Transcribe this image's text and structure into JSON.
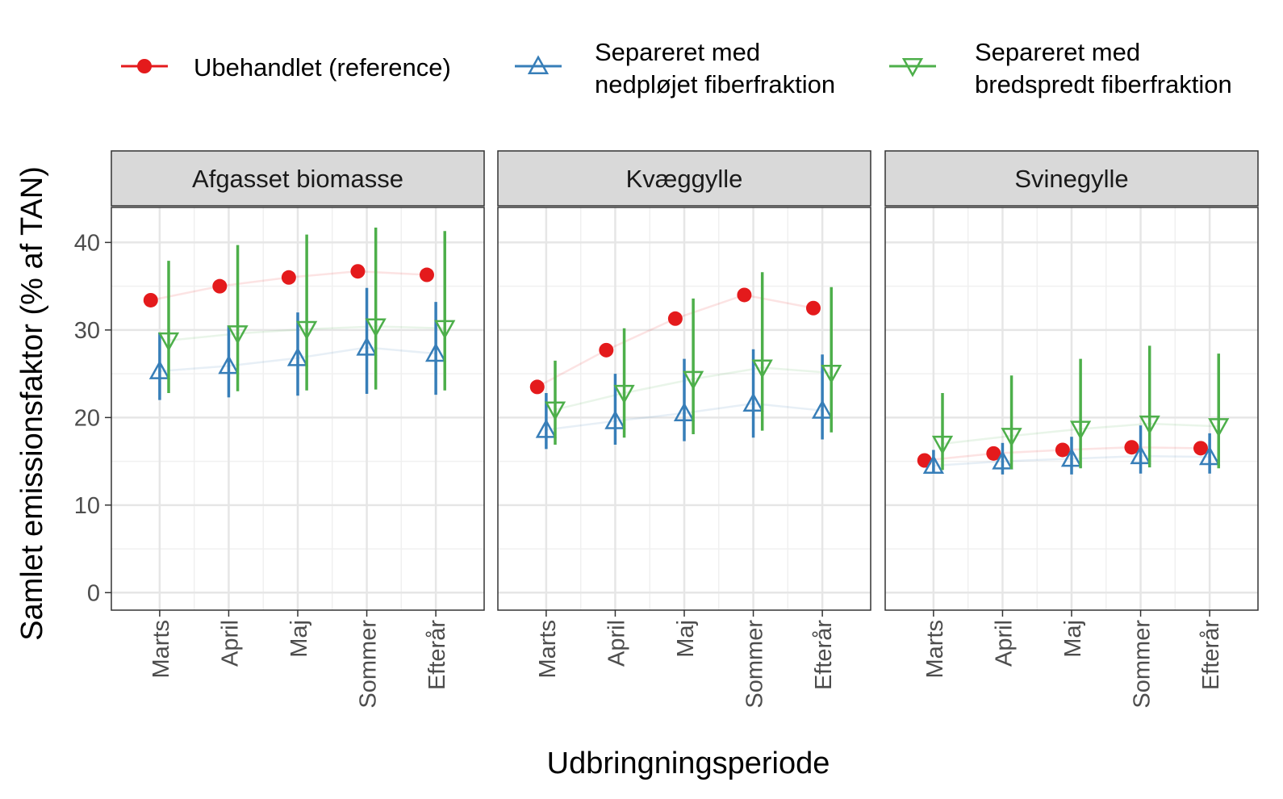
{
  "chart_data": {
    "type": "scatter",
    "ylabel": "Samlet emissionsfaktor (% af TAN)",
    "xlabel": "Udbringningsperiode",
    "categories": [
      "Marts",
      "April",
      "Maj",
      "Sommer",
      "Efterår"
    ],
    "ylim": [
      -2,
      44
    ],
    "y_ticks": [
      0,
      10,
      20,
      30,
      40
    ],
    "grid": true,
    "legend_position": "top",
    "legend": [
      {
        "label_lines": [
          "Ubehandlet (reference)"
        ],
        "color": "#e41a1c",
        "marker": "circle"
      },
      {
        "label_lines": [
          "Separeret med",
          "nedpløjet fiberfraktion"
        ],
        "color": "#377eb8",
        "marker": "triangle-up"
      },
      {
        "label_lines": [
          "Separeret med",
          "bredspredt fiberfraktion"
        ],
        "color": "#4daf4a",
        "marker": "triangle-down"
      }
    ],
    "panels": [
      {
        "title": "Afgasset biomasse",
        "series": [
          {
            "name": "Ubehandlet (reference)",
            "values": [
              33.4,
              35.0,
              36.0,
              36.7,
              36.3
            ],
            "lower": [
              null,
              null,
              null,
              null,
              null
            ],
            "upper": [
              null,
              null,
              null,
              null,
              null
            ]
          },
          {
            "name": "Separeret med nedpløjet fiberfraktion",
            "values": [
              25.3,
              25.9,
              26.8,
              28.0,
              27.3
            ],
            "lower": [
              22.0,
              22.3,
              22.5,
              22.7,
              22.6
            ],
            "upper": [
              29.7,
              30.5,
              32.0,
              34.8,
              33.2
            ]
          },
          {
            "name": "Separeret med bredspredt fiberfraktion",
            "values": [
              28.8,
              29.6,
              30.1,
              30.4,
              30.2
            ],
            "lower": [
              22.8,
              23.0,
              23.1,
              23.2,
              23.1
            ],
            "upper": [
              37.9,
              39.7,
              40.9,
              41.7,
              41.3
            ]
          }
        ]
      },
      {
        "title": "Kvæggylle",
        "series": [
          {
            "name": "Ubehandlet (reference)",
            "values": [
              23.5,
              27.7,
              31.3,
              34.0,
              32.5
            ],
            "lower": [
              null,
              null,
              null,
              null,
              null
            ],
            "upper": [
              null,
              null,
              null,
              null,
              null
            ]
          },
          {
            "name": "Separeret med nedpløjet fiberfraktion",
            "values": [
              18.6,
              19.6,
              20.5,
              21.6,
              20.8
            ],
            "lower": [
              16.4,
              16.9,
              17.3,
              17.7,
              17.5
            ],
            "upper": [
              22.8,
              25.0,
              26.7,
              27.8,
              27.2
            ]
          },
          {
            "name": "Separeret med bredspredt fiberfraktion",
            "values": [
              20.9,
              22.8,
              24.4,
              25.7,
              25.1
            ],
            "lower": [
              16.9,
              17.7,
              18.1,
              18.5,
              18.3
            ],
            "upper": [
              26.5,
              30.2,
              33.6,
              36.6,
              34.9
            ]
          }
        ]
      },
      {
        "title": "Svinegylle",
        "series": [
          {
            "name": "Ubehandlet (reference)",
            "values": [
              15.1,
              15.9,
              16.3,
              16.6,
              16.5
            ],
            "lower": [
              null,
              null,
              null,
              null,
              null
            ],
            "upper": [
              null,
              null,
              null,
              null,
              null
            ]
          },
          {
            "name": "Separeret med nedpløjet fiberfraktion",
            "values": [
              14.5,
              15.0,
              15.3,
              15.6,
              15.5
            ],
            "lower": [
              13.6,
              13.5,
              13.5,
              13.6,
              13.6
            ],
            "upper": [
              16.3,
              17.1,
              17.8,
              19.1,
              18.2
            ]
          },
          {
            "name": "Separeret med bredspredt fiberfraktion",
            "values": [
              17.0,
              17.9,
              18.7,
              19.3,
              19.0
            ],
            "lower": [
              14.0,
              14.1,
              14.2,
              14.3,
              14.2
            ],
            "upper": [
              22.8,
              24.8,
              26.7,
              28.2,
              27.3
            ]
          }
        ]
      }
    ]
  }
}
